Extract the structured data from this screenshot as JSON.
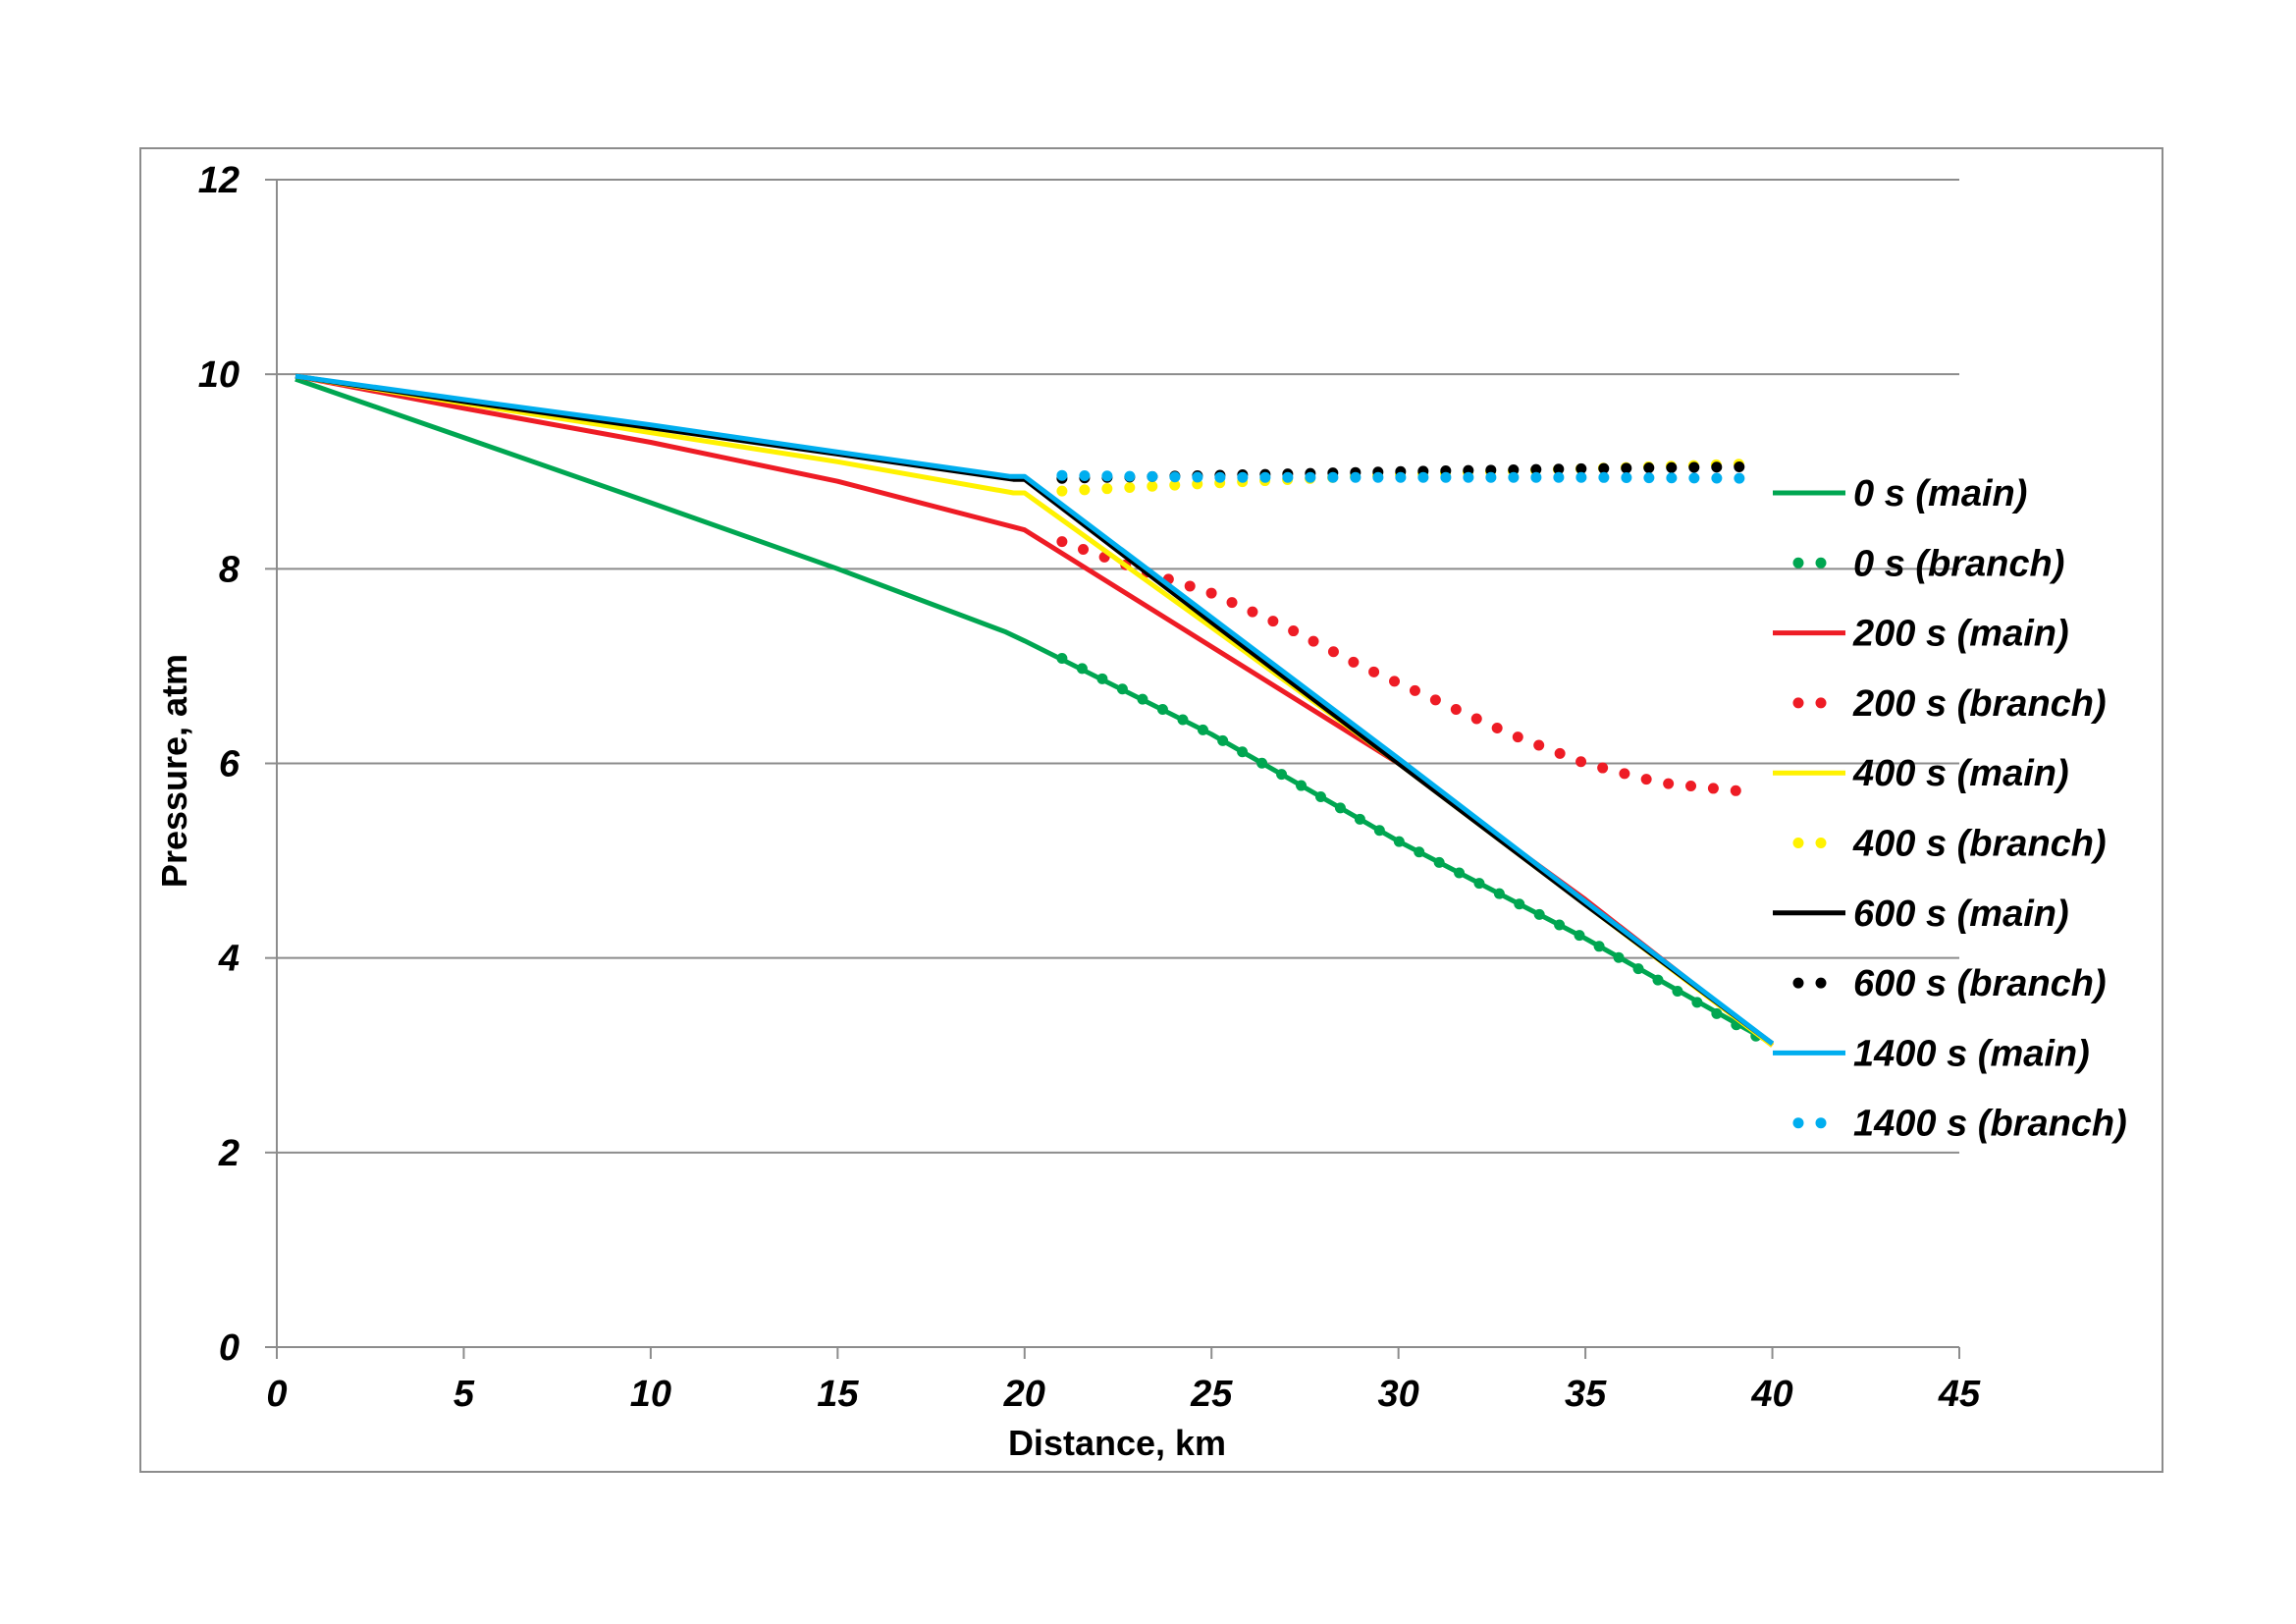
{
  "chart_data": {
    "type": "line",
    "title": "",
    "xlabel": "Distance, km",
    "ylabel": "Pressure, atm",
    "xlim": [
      0,
      45
    ],
    "ylim": [
      0,
      12
    ],
    "x_ticks": [
      0,
      5,
      10,
      15,
      20,
      25,
      30,
      35,
      40,
      45
    ],
    "y_ticks": [
      0,
      2,
      4,
      6,
      8,
      10,
      12
    ],
    "grid": "horizontal",
    "legend_position": "right",
    "series": [
      {
        "name": "0 s (main)",
        "color": "#00a651",
        "style": "solid",
        "x": [
          0.5,
          5,
          10,
          15,
          19.5,
          20,
          25,
          30,
          35,
          40
        ],
        "y": [
          9.95,
          9.35,
          8.68,
          8.0,
          7.35,
          7.26,
          6.3,
          5.2,
          4.2,
          3.12
        ]
      },
      {
        "name": "0 s (branch)",
        "color": "#00a651",
        "style": "dotted",
        "x": [
          21,
          25,
          30,
          35,
          40
        ],
        "y": [
          7.08,
          6.3,
          5.2,
          4.2,
          3.1
        ]
      },
      {
        "name": "200 s (main)",
        "color": "#ee1c25",
        "style": "solid",
        "x": [
          0.5,
          5,
          10,
          15,
          19.7,
          20,
          25,
          30,
          35,
          40
        ],
        "y": [
          9.98,
          9.65,
          9.3,
          8.9,
          8.43,
          8.4,
          7.2,
          6.0,
          4.6,
          3.1
        ]
      },
      {
        "name": "200 s (branch)",
        "color": "#ee1c25",
        "style": "dotted",
        "x": [
          21,
          23,
          25,
          27,
          29,
          31,
          33,
          35,
          37,
          39.5
        ],
        "y": [
          8.28,
          8.0,
          7.75,
          7.4,
          7.0,
          6.65,
          6.3,
          6.0,
          5.8,
          5.7
        ]
      },
      {
        "name": "400 s (main)",
        "color": "#fff200",
        "style": "solid",
        "x": [
          0.5,
          5,
          10,
          15,
          19.7,
          20,
          25,
          30,
          35,
          40
        ],
        "y": [
          9.98,
          9.7,
          9.4,
          9.1,
          8.78,
          8.78,
          7.4,
          6.0,
          4.55,
          3.1
        ]
      },
      {
        "name": "400 s (branch)",
        "color": "#fff200",
        "style": "dotted",
        "x": [
          21,
          25,
          30,
          35,
          39.5
        ],
        "y": [
          8.8,
          8.88,
          8.97,
          9.03,
          9.08
        ]
      },
      {
        "name": "600 s (main)",
        "color": "#000000",
        "style": "solid",
        "x": [
          0.5,
          5,
          10,
          15,
          19.7,
          20,
          25,
          30,
          35,
          40
        ],
        "y": [
          9.98,
          9.72,
          9.45,
          9.18,
          8.92,
          8.92,
          7.45,
          6.0,
          4.55,
          3.12
        ]
      },
      {
        "name": "600 s (branch)",
        "color": "#000000",
        "style": "dotted",
        "x": [
          21,
          25,
          30,
          35,
          39.5
        ],
        "y": [
          8.93,
          8.96,
          9.0,
          9.03,
          9.05
        ]
      },
      {
        "name": "1400 s (main)",
        "color": "#00aeef",
        "style": "solid",
        "x": [
          0.5,
          5,
          10,
          15,
          19.6,
          20,
          25,
          30,
          35,
          40
        ],
        "y": [
          9.98,
          9.74,
          9.48,
          9.2,
          8.95,
          8.95,
          7.5,
          6.05,
          4.58,
          3.12
        ]
      },
      {
        "name": "1400 s (branch)",
        "color": "#00aeef",
        "style": "dotted",
        "x": [
          21,
          25,
          30,
          35,
          39.5
        ],
        "y": [
          8.96,
          8.94,
          8.94,
          8.94,
          8.93
        ]
      }
    ]
  }
}
